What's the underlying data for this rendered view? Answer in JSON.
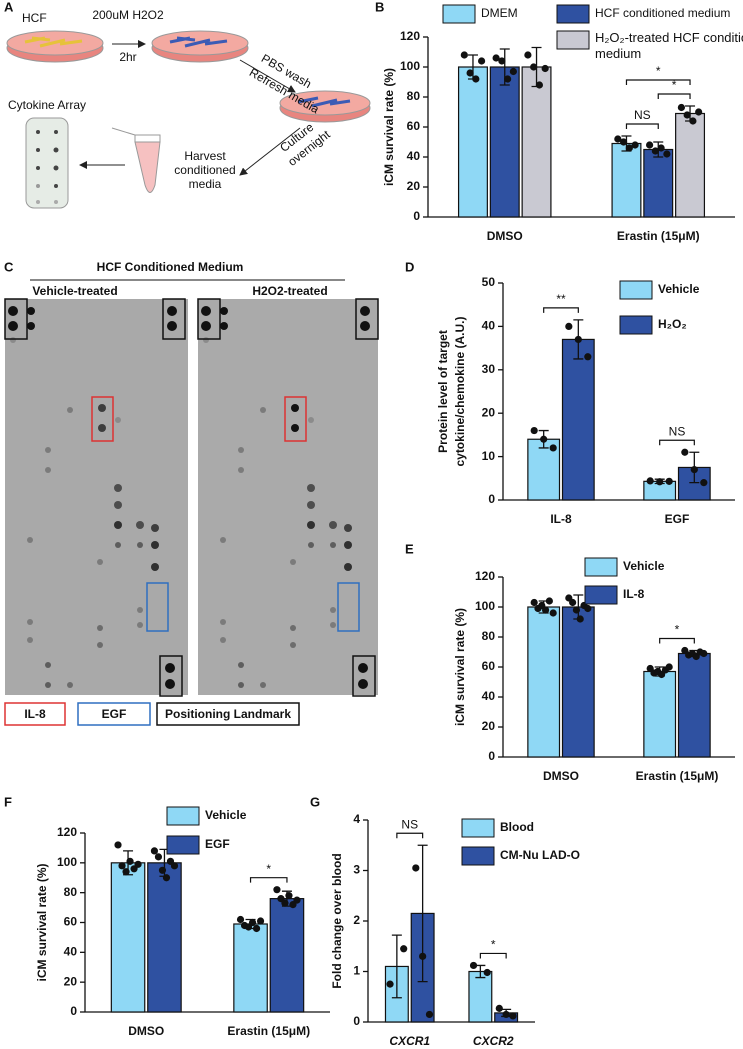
{
  "panel_labels": [
    "A",
    "B",
    "C",
    "D",
    "E",
    "F",
    "G"
  ],
  "diagram": {
    "cell_label": "HCF",
    "treatment": "200uM H2O2",
    "duration": "2hr",
    "wash": "PBS wash",
    "refresh": "Refresh media",
    "culture": [
      "Culture",
      "overnight"
    ],
    "harvest": [
      "Harvest",
      "conditioned",
      "media"
    ],
    "array": "Cytokine Array"
  },
  "array": {
    "title": "HCF Conditioned Medium",
    "left": "Vehicle-treated",
    "right": "H2O2-treated",
    "legend": [
      "IL-8",
      "EGF",
      "Positioning Landmark"
    ]
  },
  "chart_data": [
    {
      "type": "bar",
      "y_label": [
        "iCM survival rate (%)"
      ],
      "categories": [
        "DMSO",
        "Erastin (15μM)"
      ],
      "ylim": [
        0,
        120
      ],
      "yticks": [
        0,
        20,
        40,
        60,
        80,
        100,
        120
      ],
      "series": [
        {
          "name": "DMEM",
          "color": "#8fd8f5",
          "values": [
            100,
            49
          ],
          "errors": [
            8,
            5
          ],
          "points": [
            [
              108,
              96,
              92,
              104
            ],
            [
              52,
              50,
              46,
              48
            ]
          ]
        },
        {
          "name": "HCF conditioned medium",
          "color": "#2f51a1",
          "values": [
            100,
            45
          ],
          "errors": [
            12,
            5
          ],
          "points": [
            [
              106,
              104,
              92,
              97
            ],
            [
              48,
              44,
              46,
              42
            ]
          ]
        },
        {
          "name": "H₂O₂-treated HCF conditioned medium",
          "color": "#c9c9d2",
          "values": [
            100,
            69
          ],
          "errors": [
            13,
            5
          ],
          "points": [
            [
              108,
              100,
              88,
              99
            ],
            [
              73,
              68,
              64,
              70
            ]
          ]
        }
      ],
      "annotations": [
        {
          "text": "NS",
          "category": 1,
          "series": [
            0,
            1
          ]
        },
        {
          "text": "*",
          "category": 1,
          "series": [
            1,
            2
          ]
        },
        {
          "text": "*",
          "category": 1,
          "series": [
            0,
            2
          ]
        }
      ]
    },
    {
      "type": "bar",
      "y_label": [
        "Protein level of target",
        "cytokine/chemokine (A.U.)"
      ],
      "categories": [
        "IL-8",
        "EGF"
      ],
      "ylim": [
        0,
        50
      ],
      "yticks": [
        0,
        10,
        20,
        30,
        40,
        50
      ],
      "series": [
        {
          "name": "Vehicle",
          "color": "#8fd8f5",
          "values": [
            14,
            4.3
          ],
          "errors": [
            2,
            0.5
          ],
          "points": [
            [
              16,
              14,
              12
            ],
            [
              4.4,
              4.2,
              4.3
            ]
          ]
        },
        {
          "name": "H₂O₂",
          "color": "#2f51a1",
          "values": [
            37,
            7.5
          ],
          "errors": [
            4.5,
            3.5
          ],
          "points": [
            [
              40,
              37,
              33
            ],
            [
              11,
              7,
              4
            ]
          ]
        }
      ],
      "annotations": [
        {
          "text": "**",
          "category": 0,
          "series": [
            0,
            1
          ]
        },
        {
          "text": "NS",
          "category": 1,
          "series": [
            0,
            1
          ]
        }
      ]
    },
    {
      "type": "bar",
      "y_label": [
        "iCM survival rate (%)"
      ],
      "categories": [
        "DMSO",
        "Erastin (15μM)"
      ],
      "ylim": [
        0,
        120
      ],
      "yticks": [
        0,
        20,
        40,
        60,
        80,
        100,
        120
      ],
      "series": [
        {
          "name": "Vehicle",
          "color": "#8fd8f5",
          "values": [
            100,
            57
          ],
          "errors": [
            4,
            3
          ],
          "points": [
            [
              103,
              99,
              101,
              98,
              104,
              96
            ],
            [
              59,
              56,
              57,
              55,
              58,
              60
            ]
          ]
        },
        {
          "name": "IL-8",
          "color": "#2f51a1",
          "values": [
            100,
            69
          ],
          "errors": [
            8,
            2
          ],
          "points": [
            [
              106,
              103,
              98,
              92,
              101,
              99
            ],
            [
              71,
              68,
              69,
              67,
              70,
              69
            ]
          ]
        }
      ],
      "annotations": [
        {
          "text": "*",
          "category": 1,
          "series": [
            0,
            1
          ]
        }
      ]
    },
    {
      "type": "bar",
      "y_label": [
        "iCM survival rate (%)"
      ],
      "categories": [
        "DMSO",
        "Erastin (15μM)"
      ],
      "ylim": [
        0,
        120
      ],
      "yticks": [
        0,
        20,
        40,
        60,
        80,
        100,
        120
      ],
      "series": [
        {
          "name": "Vehicle",
          "color": "#8fd8f5",
          "values": [
            100,
            59
          ],
          "errors": [
            8,
            3
          ],
          "points": [
            [
              112,
              98,
              94,
              101,
              96,
              99
            ],
            [
              62,
              58,
              57,
              60,
              56,
              61
            ]
          ]
        },
        {
          "name": "EGF",
          "color": "#2f51a1",
          "values": [
            100,
            76
          ],
          "errors": [
            9,
            5
          ],
          "points": [
            [
              108,
              104,
              95,
              90,
              101,
              98
            ],
            [
              82,
              76,
              73,
              78,
              72,
              75
            ]
          ]
        }
      ],
      "annotations": [
        {
          "text": "*",
          "category": 1,
          "series": [
            0,
            1
          ]
        }
      ]
    },
    {
      "type": "bar",
      "y_label": [
        "Fold change over blood"
      ],
      "categories": [
        "CXCR1",
        "CXCR2"
      ],
      "ylim": [
        0,
        4
      ],
      "yticks": [
        0,
        1,
        2,
        3,
        4
      ],
      "series": [
        {
          "name": "Blood",
          "color": "#8fd8f5",
          "values": [
            1.1,
            1.0
          ],
          "errors": [
            0.62,
            0.12
          ],
          "points": [
            [
              0.75,
              1.45
            ],
            [
              1.12,
              0.98
            ]
          ]
        },
        {
          "name": "CM-Nu LAD-O",
          "color": "#2f51a1",
          "values": [
            2.15,
            0.18
          ],
          "errors": [
            1.35,
            0.07
          ],
          "points": [
            [
              3.05,
              1.3,
              0.15
            ],
            [
              0.27,
              0.15,
              0.12
            ]
          ]
        }
      ],
      "annotations": [
        {
          "text": "NS",
          "category": 0,
          "series": [
            0,
            1
          ]
        },
        {
          "text": "*",
          "category": 1,
          "series": [
            0,
            1
          ]
        }
      ]
    }
  ]
}
